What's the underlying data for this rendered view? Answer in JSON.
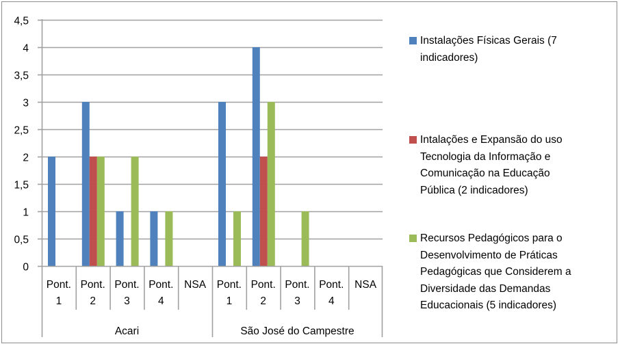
{
  "chart_data": {
    "type": "bar",
    "title": "",
    "xlabel": "",
    "ylabel": "",
    "ylim": [
      0,
      4.5
    ],
    "yticks": [
      "0",
      "0,5",
      "1",
      "1,5",
      "2",
      "2,5",
      "3",
      "3,5",
      "4",
      "4,5"
    ],
    "ytick_values": [
      0,
      0.5,
      1,
      1.5,
      2,
      2.5,
      3,
      3.5,
      4,
      4.5
    ],
    "grid": true,
    "legend_position": "right",
    "groups": [
      {
        "name": "Acari",
        "categories": [
          "Pont.\n1",
          "Pont.\n2",
          "Pont.\n3",
          "Pont.\n4",
          "NSA"
        ]
      },
      {
        "name": "São José do Campestre",
        "categories": [
          "Pont.\n1",
          "Pont.\n2",
          "Pont.\n3",
          "Pont.\n4",
          "NSA"
        ]
      }
    ],
    "categories": [
      "Pont. 1",
      "Pont. 2",
      "Pont. 3",
      "Pont. 4",
      "NSA",
      "Pont. 1",
      "Pont. 2",
      "Pont. 3",
      "Pont. 4",
      "NSA"
    ],
    "series": [
      {
        "name": "Instalações Físicas Gerais (7 indicadores)",
        "legend_text": "Instalações Físicas Gerais (7\nindicadores)",
        "color": "#4F81BD",
        "values": [
          2,
          3,
          1,
          1,
          0,
          3,
          4,
          0,
          0,
          0
        ]
      },
      {
        "name": "Intalações e Expansão do uso Tecnologia da Informação e Comunicação na Educação Pública (2 indicadores)",
        "legend_text": "Intalações e Expansão do uso\nTecnologia da Informação e\nComunicação na Educação\nPública (2 indicadores)",
        "color": "#C0504D",
        "values": [
          0,
          2,
          0,
          0,
          0,
          0,
          2,
          0,
          0,
          0
        ]
      },
      {
        "name": "Recursos Pedagógicos para o Desenvolvimento de Práticas Pedagógicas que Considerem a Diversidade das Demandas Educacionais (5 indicadores)",
        "legend_text": "Recursos Pedagógicos para o\nDesenvolvimento de Práticas\nPedagógicas que Considerem a\nDiversidade das Demandas\nEducacionais (5 indicadores)",
        "color": "#9BBB59",
        "values": [
          0,
          2,
          2,
          1,
          0,
          1,
          3,
          1,
          0,
          0
        ]
      }
    ]
  }
}
